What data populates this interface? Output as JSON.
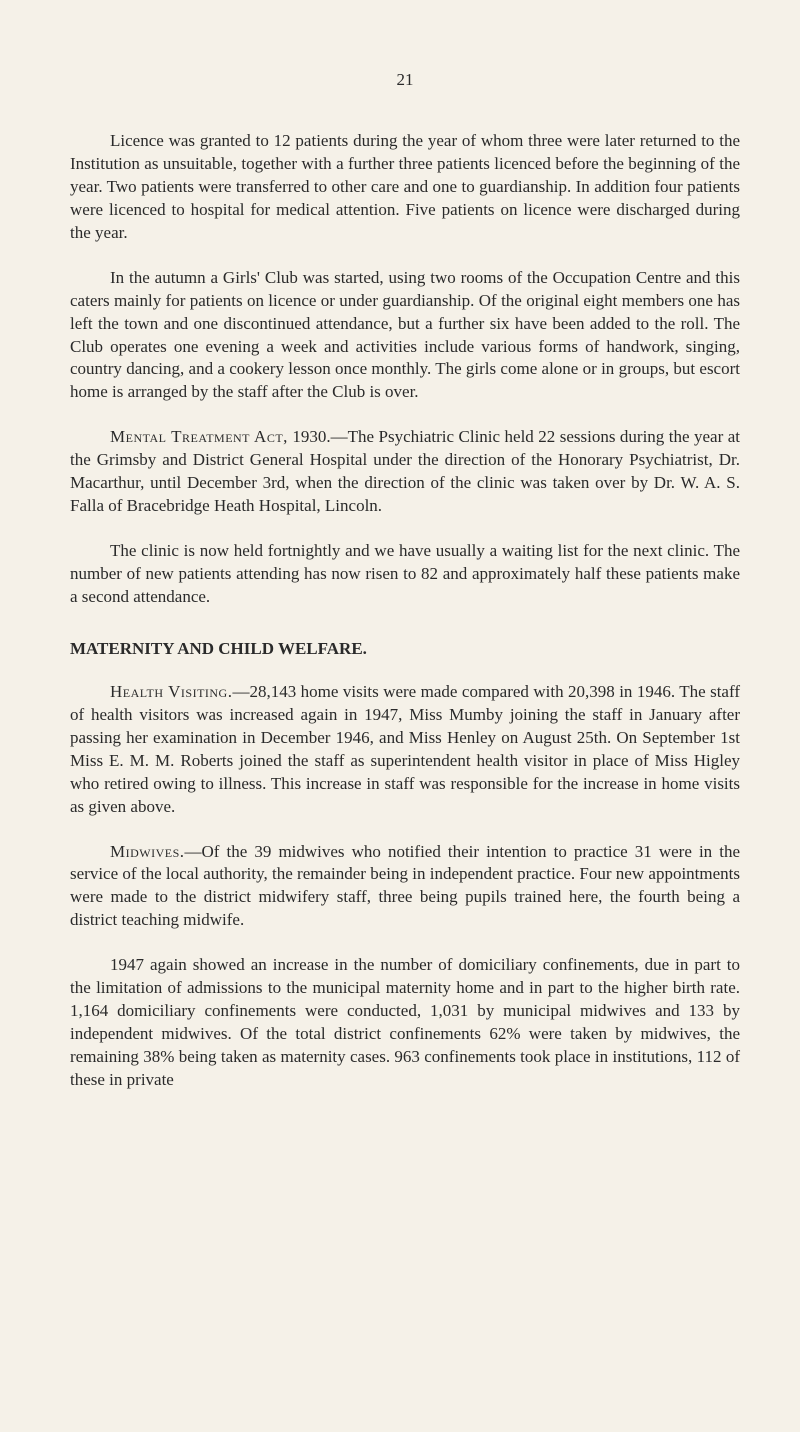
{
  "page_number": "21",
  "paragraphs": {
    "p1": "Licence was granted to 12 patients during the year of whom three were later returned to the Institution as unsuitable, together with a further three patients licenced before the beginning of the year. Two patients were transferred to other care and one to guardianship. In addition four patients were licenced to hospital for medical attention. Five patients on licence were discharged during the year.",
    "p2": "In the autumn a Girls' Club was started, using two rooms of the Occupation Centre and this caters mainly for patients on licence or under guardianship. Of the original eight members one has left the town and one discontinued attendance, but a further six have been added to the roll. The Club operates one evening a week and activities include various forms of handwork, singing, country dancing, and a cookery lesson once monthly. The girls come alone or in groups, but escort home is arranged by the staff after the Club is over.",
    "p3_lead": "Mental Treatment Act,",
    "p3_rest": " 1930.—The Psychiatric Clinic held 22 sessions during the year at the Grimsby and District General Hospital under the direction of the Honorary Psychiatrist, Dr. Macarthur, until December 3rd, when the direction of the clinic was taken over by Dr. W. A. S. Falla of Bracebridge Heath Hospital, Lincoln.",
    "p4": "The clinic is now held fortnightly and we have usually a waiting list for the next clinic. The number of new patients attending has now risen to 82 and approximately half these patients make a second attendance."
  },
  "section_heading": "MATERNITY AND CHILD WELFARE.",
  "maternity": {
    "p1_lead": "Health Visiting.",
    "p1_rest": "—28,143 home visits were made compared with 20,398 in 1946. The staff of health visitors was increased again in 1947, Miss Mumby joining the staff in January after passing her examination in December 1946, and Miss Henley on August 25th. On September 1st Miss E. M. M. Roberts joined the staff as superintendent health visitor in place of Miss Higley who retired owing to illness. This increase in staff was responsible for the increase in home visits as given above.",
    "p2_lead": "Midwives.",
    "p2_rest": "—Of the 39 midwives who notified their intention to practice 31 were in the service of the local authority, the remainder being in independent practice. Four new appointments were made to the district midwifery staff, three being pupils trained here, the fourth being a district teaching midwife.",
    "p3": "1947 again showed an increase in the number of domiciliary confinements, due in part to the limitation of admissions to the municipal maternity home and in part to the higher birth rate. 1,164 domiciliary confinements were conducted, 1,031 by municipal midwives and 133 by independent midwives. Of the total district confinements 62% were taken by midwives, the remaining 38% being taken as maternity cases. 963 confinements took place in institutions, 112 of these in private"
  }
}
